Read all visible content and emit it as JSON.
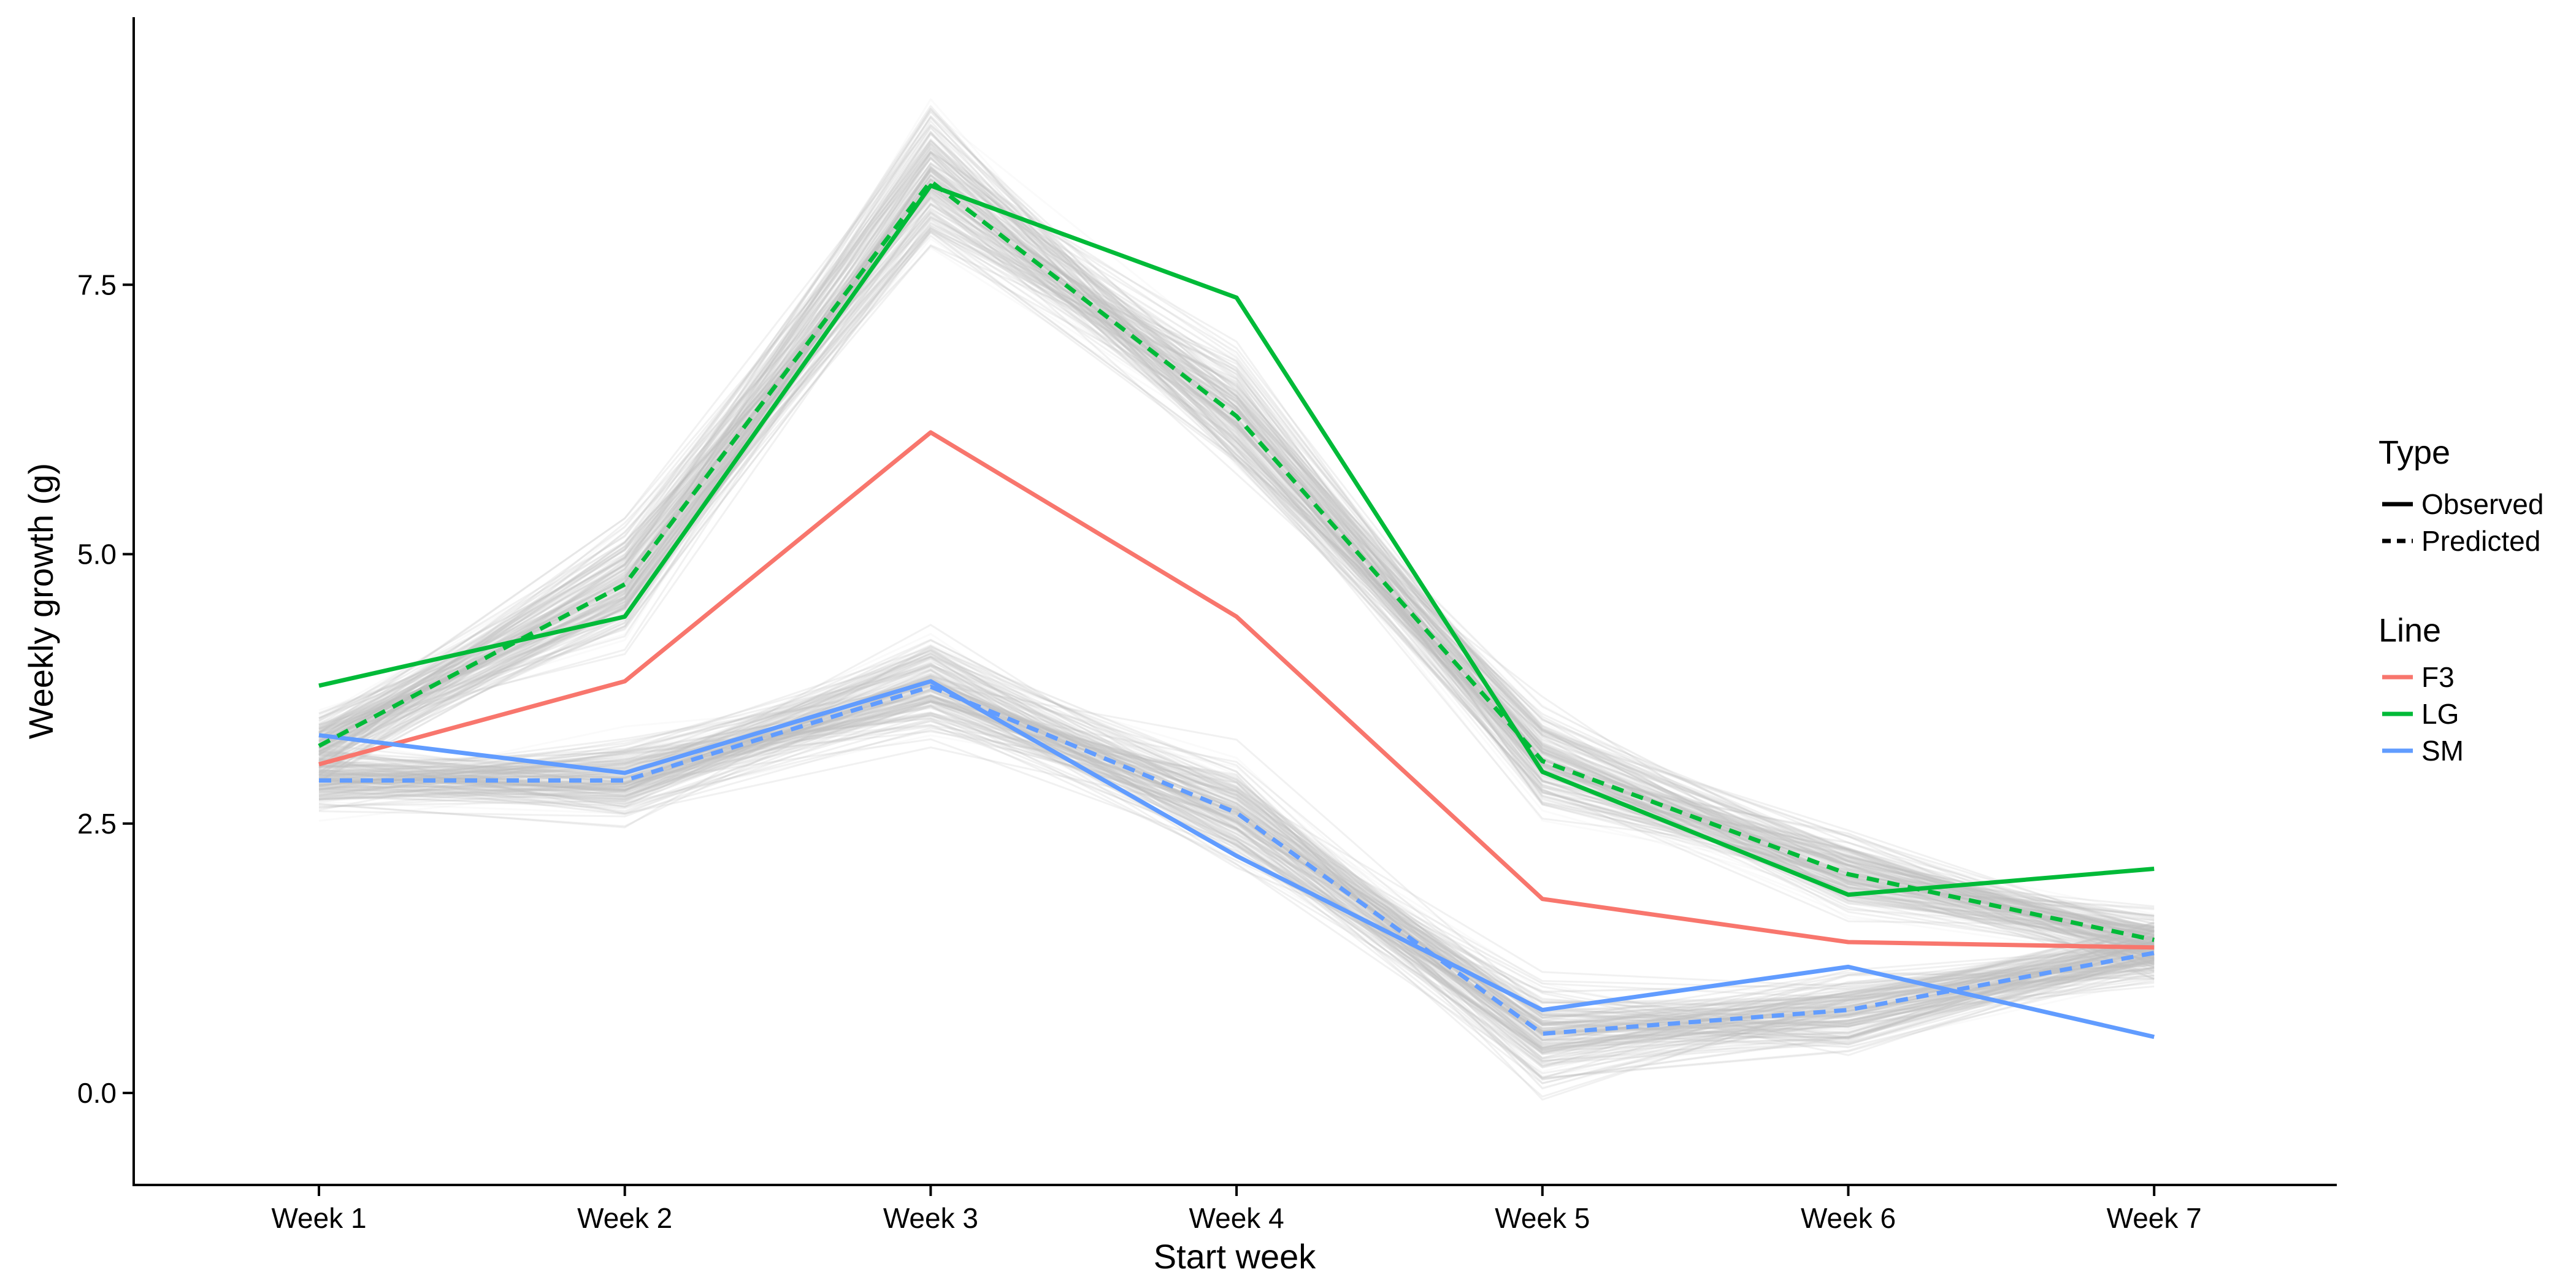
{
  "chart_data": {
    "type": "line",
    "title": "",
    "xlabel": "Start week",
    "ylabel": "Weekly growth (g)",
    "categories": [
      "Week 1",
      "Week 2",
      "Week 3",
      "Week 4",
      "Week 5",
      "Week 6",
      "Week 7"
    ],
    "y_ticks": [
      "0.0",
      "2.5",
      "5.0",
      "7.5"
    ],
    "y_tick_values": [
      0.0,
      2.5,
      5.0,
      7.5
    ],
    "ylim": [
      -0.85,
      10.0
    ],
    "grid": false,
    "legend_position": "right",
    "legend": {
      "type_title": "Type",
      "type_entries": [
        {
          "label": "Observed",
          "dash": "solid"
        },
        {
          "label": "Predicted",
          "dash": "dashed"
        }
      ],
      "line_title": "Line",
      "line_entries": [
        {
          "label": "F3",
          "color": "#F8766D"
        },
        {
          "label": "LG",
          "color": "#00BA38"
        },
        {
          "label": "SM",
          "color": "#619CFF"
        }
      ]
    },
    "series": [
      {
        "name": "F3",
        "type": "Observed",
        "color": "#F8766D",
        "values": [
          3.05,
          3.82,
          6.13,
          4.42,
          1.8,
          1.4,
          1.35
        ]
      },
      {
        "name": "LG",
        "type": "Observed",
        "color": "#00BA38",
        "values": [
          3.78,
          4.42,
          8.42,
          7.38,
          2.98,
          1.84,
          2.08
        ]
      },
      {
        "name": "SM",
        "type": "Observed",
        "color": "#619CFF",
        "values": [
          3.32,
          2.97,
          3.82,
          2.2,
          0.77,
          1.17,
          0.52
        ]
      },
      {
        "name": "LG",
        "type": "Predicted",
        "color": "#00BA38",
        "values": [
          3.22,
          4.72,
          8.46,
          6.28,
          3.08,
          2.03,
          1.42
        ]
      },
      {
        "name": "SM",
        "type": "Predicted",
        "color": "#619CFF",
        "values": [
          2.9,
          2.9,
          3.77,
          2.6,
          0.55,
          0.77,
          1.3
        ]
      }
    ],
    "simulation_bands": [
      {
        "center": [
          3.22,
          4.72,
          8.46,
          6.28,
          3.08,
          2.03,
          1.42
        ],
        "spread": [
          0.28,
          0.45,
          0.6,
          0.5,
          0.42,
          0.3,
          0.26
        ]
      },
      {
        "center": [
          2.9,
          2.9,
          3.77,
          2.6,
          0.55,
          0.77,
          1.3
        ],
        "spread": [
          0.25,
          0.32,
          0.4,
          0.42,
          0.42,
          0.35,
          0.26
        ]
      }
    ],
    "simulation_color": "#BDBDBD"
  }
}
